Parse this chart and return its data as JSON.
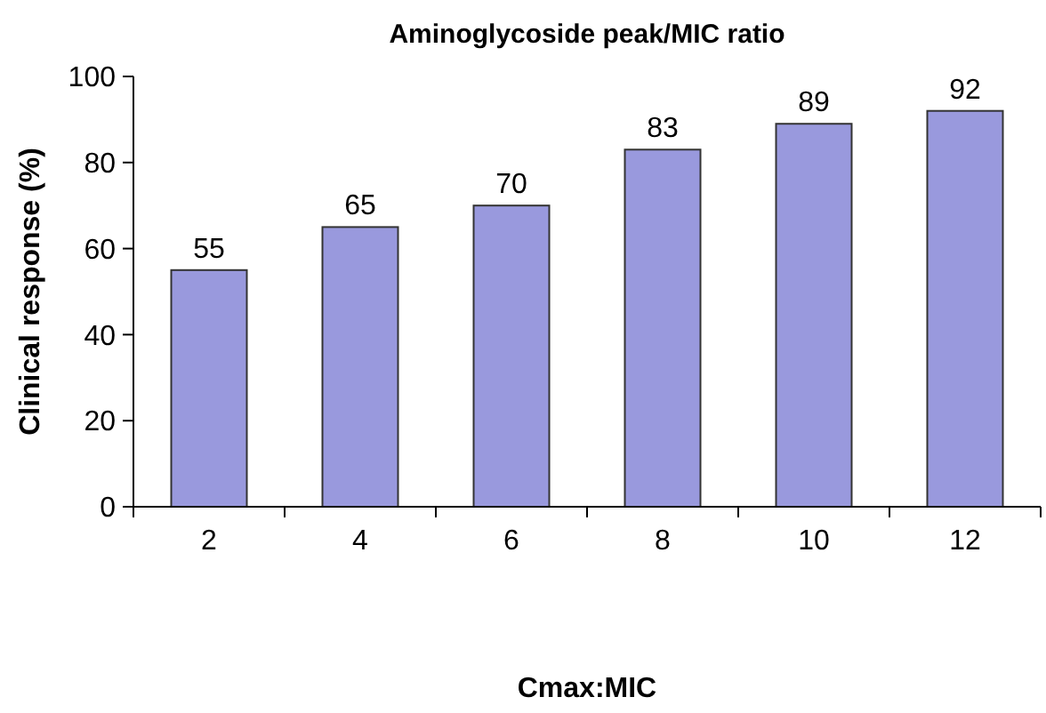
{
  "chart_data": {
    "type": "bar",
    "title": "Aminoglycoside peak/MIC ratio",
    "xlabel": "Cmax:MIC",
    "ylabel": "Clinical response (%)",
    "categories": [
      "2",
      "4",
      "6",
      "8",
      "10",
      "12"
    ],
    "values": [
      55,
      65,
      70,
      83,
      89,
      92
    ],
    "color": "#9999dd",
    "ylim": [
      0,
      100
    ],
    "yticks": [
      0,
      20,
      40,
      60,
      80,
      100
    ],
    "data_labels": true,
    "grid": false
  }
}
